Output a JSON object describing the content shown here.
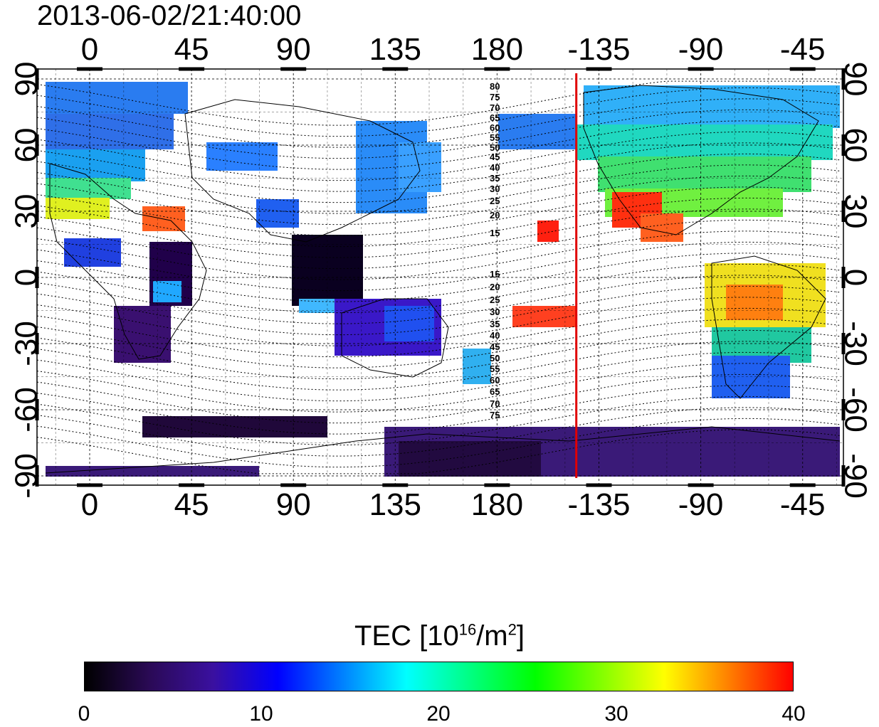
{
  "timestamp": "2013-06-02/21:40:00",
  "lon_tick_labels": [
    "0",
    "45",
    "90",
    "135",
    "180",
    "-135",
    "-90",
    "-45"
  ],
  "lat_tick_labels": [
    "90",
    "60",
    "30",
    "0",
    "-30",
    "-60",
    "-90"
  ],
  "contour_labels_north": [
    "80",
    "75",
    "70",
    "65",
    "60",
    "55",
    "50",
    "45",
    "40",
    "35",
    "30",
    "25",
    "20",
    "15"
  ],
  "contour_labels_south": [
    "15",
    "20",
    "25",
    "30",
    "35",
    "40",
    "45",
    "50",
    "55",
    "60",
    "65",
    "70",
    "75"
  ],
  "marker_longitude": -145,
  "colorbar": {
    "title_prefix": "TEC  [10",
    "title_exp1": "16",
    "title_mid": "/m",
    "title_exp2": "2",
    "title_suffix": "]",
    "min": 0,
    "max": 40,
    "tick_labels": [
      "0",
      "10",
      "20",
      "30",
      "40"
    ]
  },
  "colors": {
    "marker_line": "#e00000",
    "colorbar_stops": [
      "#000000",
      "#2a0a55",
      "#3a10a0",
      "#0000ff",
      "#0080ff",
      "#00ffff",
      "#00ff80",
      "#00ff00",
      "#80ff00",
      "#ffff00",
      "#ff8000",
      "#ff0000"
    ]
  }
}
